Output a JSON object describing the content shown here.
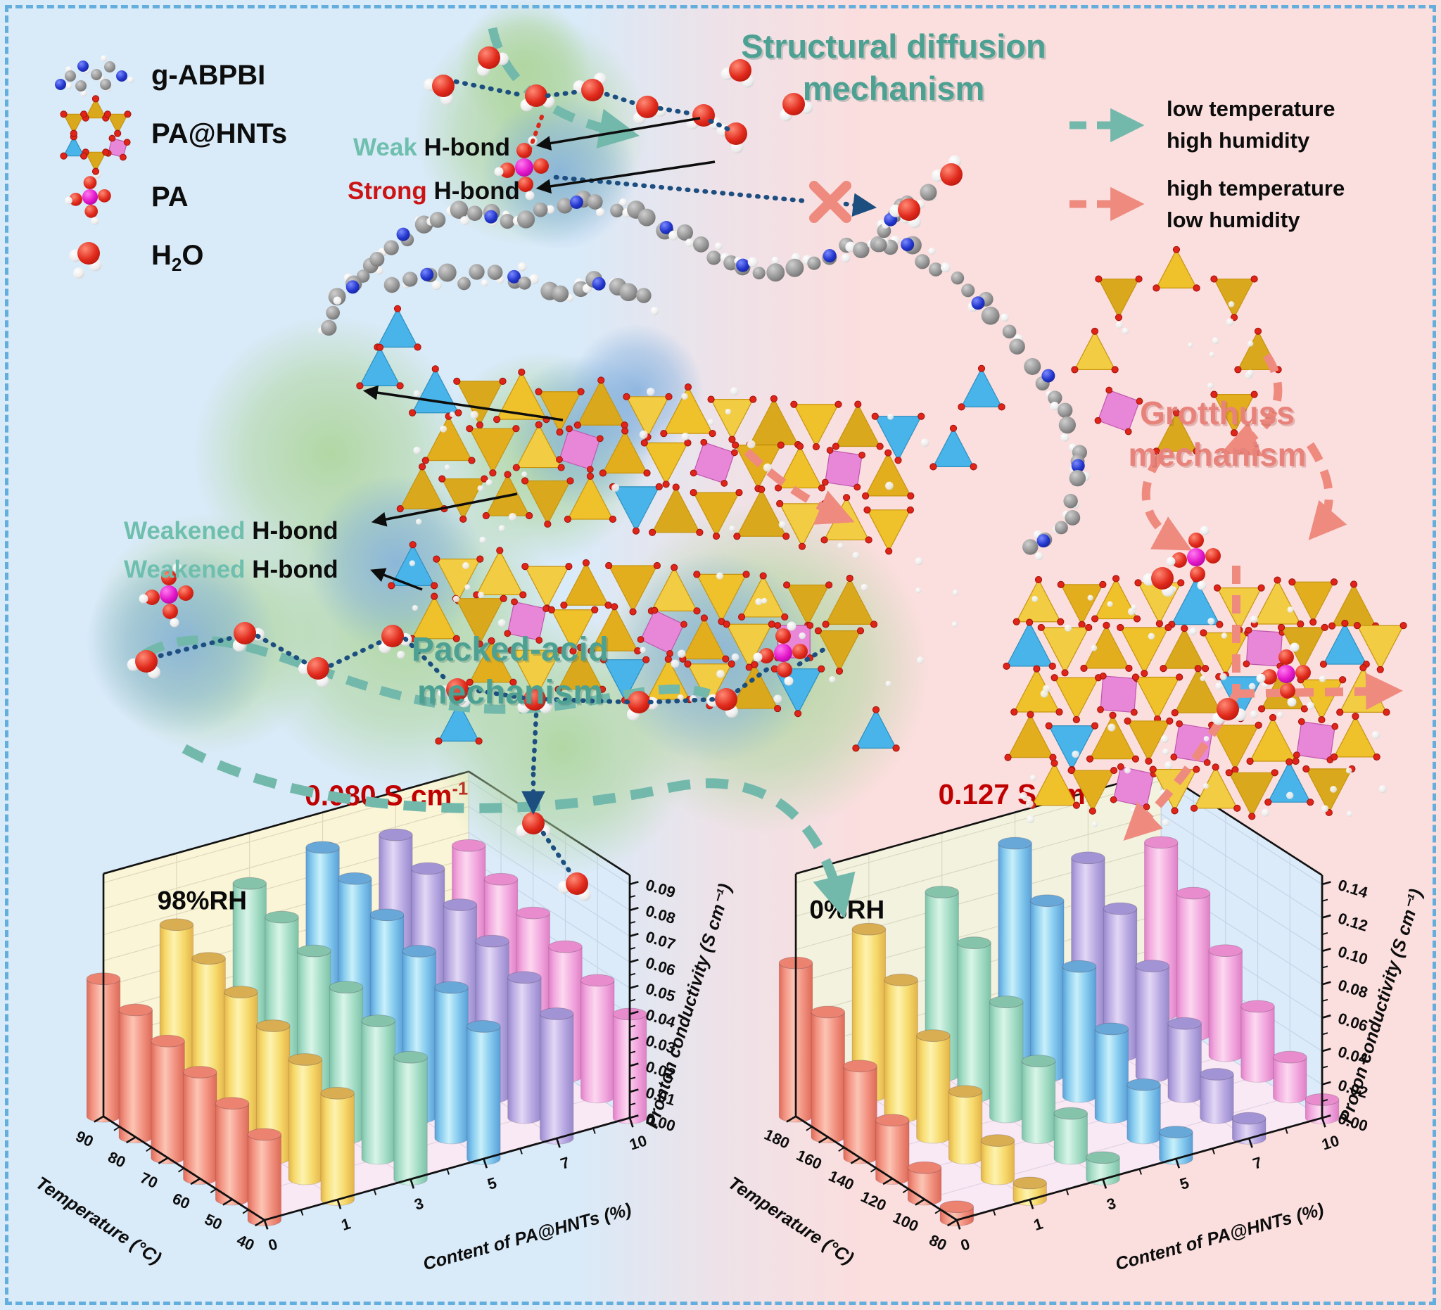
{
  "colors": {
    "bg_left": "#d9eaf8",
    "bg_right": "#fbdede",
    "border": "#64aede",
    "teal_accent": "#4da193",
    "teal_arrow": "#72b8ab",
    "salmon_accent": "#e8837b",
    "salmon_arrow": "#ee8a7e",
    "navy_bond": "#1d4e80",
    "strong_red": "#cc1414",
    "annotation_red": "#c00000",
    "gold_hnt": "#efc12b",
    "cyan_hnt": "#49b4e9",
    "magenta_hnt": "#e887d8"
  },
  "legend": {
    "items": [
      {
        "label": "g-ABPBI",
        "icon": "polymer-molecule-icon"
      },
      {
        "label": "PA@HNTs",
        "icon": "hnt-ring-icon"
      },
      {
        "label": "PA",
        "icon": "pa-molecule-icon"
      },
      {
        "icon": "water-molecule-icon",
        "formula_pre": "H",
        "formula_sub": "2",
        "formula_post": "O"
      }
    ]
  },
  "mechanism_titles": {
    "structural": {
      "line1": "Structural diffusion",
      "line2": "mechanism"
    },
    "packed_acid": {
      "line1": "Packed-acid",
      "line2": "mechanism"
    },
    "grotthuss": {
      "line1": "Grotthuss",
      "line2": "mechanism"
    }
  },
  "condition_legend": [
    {
      "arrow": "teal-dashed-arrow",
      "line1": "low temperature",
      "line2": "high humidity"
    },
    {
      "arrow": "salmon-dashed-arrow",
      "line1": "high temperature",
      "line2": "low humidity"
    }
  ],
  "hbond_labels": {
    "weak": {
      "emph": "Weak",
      "emph_color": "#6fbfae",
      "rest": " H-bond"
    },
    "strong": {
      "emph": "Strong",
      "emph_color": "#cc1414",
      "rest": " H-bond"
    },
    "weakened1": {
      "emph": "Weakened",
      "emph_color": "#6fbfae",
      "rest": " H-bond"
    },
    "weakened2": {
      "emph": "Weakened",
      "emph_color": "#6fbfae",
      "rest": " H-bond"
    }
  },
  "chart_data": [
    {
      "type": "bar",
      "variant": "3d-cylinder",
      "rh_label": "98%RH",
      "peak_annotation": {
        "value_text": "0.080 S cm",
        "exponent": "-1",
        "color": "#c00000"
      },
      "xlabel": "Temperature (°C)",
      "x_ticks": [
        "40",
        "50",
        "60",
        "70",
        "80",
        "90"
      ],
      "ylabel": "Content of PA@HNTs (%)",
      "y_ticks": [
        "0",
        "1",
        "3",
        "5",
        "7",
        "10"
      ],
      "zlabel": "Pronton conductivity (S cm⁻¹)",
      "z_ticks": [
        "0.00",
        "0.01",
        "0.02",
        "0.03",
        "0.04",
        "0.05",
        "0.06",
        "0.07",
        "0.08",
        "0.09"
      ],
      "zlim": [
        0,
        0.09
      ],
      "z_axis_max": 0.0935,
      "legend_position": "none",
      "grid": true,
      "style": {
        "floor": "#f8e9f5",
        "wall_left": "#faf5d7",
        "wall_right": "#dcebf9",
        "grid_floor": "#e2d2e2",
        "grid_wall_left": "#ddd6bb",
        "grid_wall_right": "#c4d4e8"
      },
      "series": [
        {
          "name": "0",
          "color": {
            "light": "#fcc4b4",
            "mid": "#f29180",
            "dark": "#dd6a58",
            "top": "#ec8270"
          },
          "values": [
            0.033,
            0.037,
            0.041,
            0.045,
            0.049,
            0.053
          ]
        },
        {
          "name": "1",
          "color": {
            "light": "#fdf3b0",
            "mid": "#f6d96a",
            "dark": "#e3b34a",
            "top": "#d9ae52"
          },
          "values": [
            0.041,
            0.046,
            0.051,
            0.056,
            0.061,
            0.066
          ]
        },
        {
          "name": "3",
          "color": {
            "light": "#d8f5e8",
            "mid": "#a5ddc6",
            "dark": "#7cc2a8",
            "top": "#85c4ab"
          },
          "values": [
            0.047,
            0.053,
            0.058,
            0.064,
            0.069,
            0.074
          ]
        },
        {
          "name": "5",
          "color": {
            "light": "#c8f0fa",
            "mid": "#82c8ee",
            "dark": "#5a9fd6",
            "top": "#68a8d8"
          },
          "values": [
            0.051,
            0.058,
            0.064,
            0.07,
            0.076,
            0.08
          ]
        },
        {
          "name": "7",
          "color": {
            "light": "#e2d8f5",
            "mid": "#b9a9e2",
            "dark": "#9688cb",
            "top": "#a294d4"
          },
          "values": [
            0.048,
            0.054,
            0.06,
            0.066,
            0.072,
            0.077
          ]
        },
        {
          "name": "10",
          "color": {
            "light": "#fcd8f0",
            "mid": "#f2a8de",
            "dark": "#de7fc6",
            "top": "#e98cce"
          },
          "values": [
            0.04,
            0.045,
            0.05,
            0.055,
            0.06,
            0.065
          ]
        }
      ]
    },
    {
      "type": "bar",
      "variant": "3d-cylinder",
      "rh_label": "0%RH",
      "peak_annotation": {
        "value_text": "0.127 S cm",
        "exponent": "-1",
        "color": "#c00000"
      },
      "xlabel": "Temperature (°C)",
      "x_ticks": [
        "80",
        "100",
        "120",
        "140",
        "160",
        "180"
      ],
      "ylabel": "Content of PA@HNTs (%)",
      "y_ticks": [
        "0",
        "1",
        "3",
        "5",
        "7",
        "10"
      ],
      "zlabel": "Proton conductivity (S cm⁻¹)",
      "z_ticks": [
        "0.00",
        "0.02",
        "0.04",
        "0.06",
        "0.08",
        "0.10",
        "0.12",
        "0.14"
      ],
      "zlim": [
        0,
        0.14
      ],
      "z_axis_max": 0.1455,
      "legend_position": "none",
      "grid": true,
      "style": {
        "floor": "#f8e9f5",
        "wall_left": "#f2f2df",
        "wall_right": "#dcebf9",
        "grid_floor": "#e2d2e2",
        "grid_wall_left": "#d8d8c0",
        "grid_wall_right": "#c4d4e8"
      },
      "series": [
        {
          "name": "0",
          "color": {
            "light": "#fcc4b4",
            "mid": "#f29180",
            "dark": "#dd6a58",
            "top": "#ec8270"
          },
          "values": [
            0.008,
            0.019,
            0.035,
            0.055,
            0.075,
            0.092
          ]
        },
        {
          "name": "1",
          "color": {
            "light": "#fdf3b0",
            "mid": "#f6d96a",
            "dark": "#e3b34a",
            "top": "#d9ae52"
          },
          "values": [
            0.01,
            0.023,
            0.04,
            0.061,
            0.082,
            0.1
          ]
        },
        {
          "name": "3",
          "color": {
            "light": "#d8f5e8",
            "mid": "#a5ddc6",
            "dark": "#7cc2a8",
            "top": "#85c4ab"
          },
          "values": [
            0.013,
            0.027,
            0.046,
            0.069,
            0.092,
            0.11
          ]
        },
        {
          "name": "5",
          "color": {
            "light": "#c8f0fa",
            "mid": "#82c8ee",
            "dark": "#5a9fd6",
            "top": "#68a8d8"
          },
          "values": [
            0.016,
            0.032,
            0.053,
            0.078,
            0.105,
            0.127
          ]
        },
        {
          "name": "7",
          "color": {
            "light": "#e2d8f5",
            "mid": "#b9a9e2",
            "dark": "#9688cb",
            "top": "#a294d4"
          },
          "values": [
            0.012,
            0.026,
            0.044,
            0.066,
            0.088,
            0.106
          ]
        },
        {
          "name": "10",
          "color": {
            "light": "#fcd8f0",
            "mid": "#f2a8de",
            "dark": "#de7fc6",
            "top": "#e98cce"
          },
          "values": [
            0.011,
            0.024,
            0.042,
            0.063,
            0.085,
            0.103
          ]
        }
      ]
    }
  ]
}
